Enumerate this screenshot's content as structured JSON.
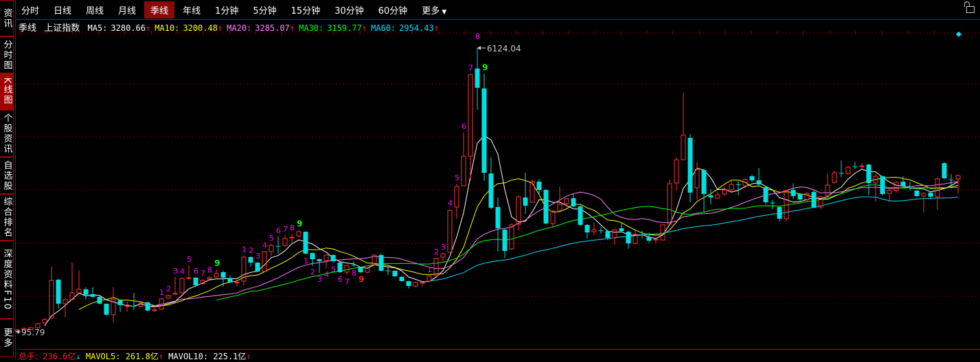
{
  "sidebar": {
    "items": [
      {
        "label": "资讯",
        "active": false
      },
      {
        "label": "分时图",
        "active": false
      },
      {
        "label": "K线图",
        "active": true
      },
      {
        "label": "个股资讯",
        "active": false
      },
      {
        "label": "自选股",
        "active": false
      },
      {
        "label": "综合排名",
        "active": false
      },
      {
        "label": "深度资料F10",
        "active": false
      },
      {
        "label": "更多",
        "active": false
      }
    ]
  },
  "toolbar": {
    "tabs": [
      "分时",
      "日线",
      "周线",
      "月线",
      "季线",
      "年线",
      "1分钟",
      "5分钟",
      "15分钟",
      "30分钟",
      "60分钟"
    ],
    "active_index": 4,
    "more_label": "更多",
    "lock_icon": "lock-icon"
  },
  "info": {
    "period": "季线",
    "name": "上证指数",
    "ma": [
      {
        "label": "MA5:",
        "value": "3280.66",
        "arrow": "↑",
        "color": "#ffffff"
      },
      {
        "label": "MA10:",
        "value": "3200.48",
        "arrow": "↑",
        "color": "#ffff00"
      },
      {
        "label": "MA20:",
        "value": "3285.07",
        "arrow": "↑",
        "color": "#ff80ff"
      },
      {
        "label": "MA30:",
        "value": "3159.77",
        "arrow": "↑",
        "color": "#00ff00"
      },
      {
        "label": "MA60:",
        "value": "2954.43",
        "arrow": "↑",
        "color": "#00e0ff"
      }
    ]
  },
  "volume": {
    "total_label": "总手:",
    "total_value": "236.6亿",
    "total_arrow": "↓",
    "mavol5_label": "MAVOL5:",
    "mavol5_value": "261.8亿",
    "mavol5_arrow": "↑",
    "mavol10_label": "MAVOL10:",
    "mavol10_value": "225.1亿",
    "mavol10_arrow": "↑"
  },
  "chart_data": {
    "type": "candlestick",
    "up_color": "#ff3232",
    "down_color": "#00e0e0",
    "y_scale": "linear",
    "grid": true,
    "max_label": "6124.04",
    "min_label": "95.79",
    "max_index": 67,
    "min_index": 0,
    "ma_periods": [
      5,
      10,
      20,
      30,
      60
    ],
    "ma_colors": [
      "#ffffff",
      "#ffff00",
      "#ff80ff",
      "#00ff00",
      "#00e0ff"
    ],
    "ohlc": [
      [
        111,
        140,
        155,
        96
      ],
      [
        140,
        169,
        184,
        130
      ],
      [
        140,
        184,
        200,
        130
      ],
      [
        184,
        271,
        290,
        170
      ],
      [
        286,
        358,
        380,
        280
      ],
      [
        387,
        1188,
        1480,
        370
      ],
      [
        1203,
        693,
        1220,
        591
      ],
      [
        693,
        780,
        800,
        402
      ],
      [
        780,
        926,
        1566,
        770
      ],
      [
        926,
        999,
        1400,
        910
      ],
      [
        999,
        882,
        1042,
        780
      ],
      [
        897,
        838,
        1042,
        820
      ],
      [
        838,
        693,
        850,
        680
      ],
      [
        693,
        460,
        700,
        440
      ],
      [
        460,
        780,
        1042,
        300
      ],
      [
        766,
        664,
        780,
        518
      ],
      [
        635,
        664,
        737,
        520
      ],
      [
        650,
        635,
        926,
        562
      ],
      [
        635,
        708,
        720,
        620
      ],
      [
        722,
        548,
        737,
        530
      ],
      [
        548,
        562,
        600,
        520
      ],
      [
        577,
        795,
        810,
        560
      ],
      [
        809,
        868,
        880,
        800
      ],
      [
        900,
        911,
        1261,
        890
      ],
      [
        926,
        1232,
        1250,
        920
      ],
      [
        1240,
        1246,
        1508,
        1200
      ],
      [
        1246,
        1086,
        1260,
        1070
      ],
      [
        1115,
        1188,
        1210,
        1100
      ],
      [
        1217,
        1246,
        1280,
        1200
      ],
      [
        1261,
        1334,
        1420,
        1250
      ],
      [
        1363,
        1246,
        1390,
        1057
      ],
      [
        1232,
        1144,
        1290,
        1130
      ],
      [
        1140,
        1150,
        1200,
        1060
      ],
      [
        1173,
        1683,
        1720,
        1080
      ],
      [
        1683,
        1566,
        1700,
        1480
      ],
      [
        1566,
        1377,
        1580,
        1360
      ],
      [
        1377,
        1800,
        1810,
        1370
      ],
      [
        1800,
        1931,
        1960,
        1700
      ],
      [
        1920,
        1910,
        2120,
        1750
      ],
      [
        1931,
        2076,
        2150,
        1900
      ],
      [
        2090,
        2105,
        2180,
        1950
      ],
      [
        2134,
        2222,
        2260,
        2100
      ],
      [
        2222,
        1756,
        2230,
        1740
      ],
      [
        1770,
        1639,
        1780,
        1500
      ],
      [
        1639,
        1596,
        1660,
        1348
      ],
      [
        1610,
        1727,
        1740,
        1450
      ],
      [
        1727,
        1596,
        1740,
        1560
      ],
      [
        1566,
        1363,
        1580,
        1350
      ],
      [
        1363,
        1508,
        1520,
        1300
      ],
      [
        1520,
        1508,
        1600,
        1480
      ],
      [
        1465,
        1363,
        1480,
        1340
      ],
      [
        1363,
        1494,
        1510,
        1340
      ],
      [
        1523,
        1727,
        1740,
        1510
      ],
      [
        1727,
        1392,
        1760,
        1380
      ],
      [
        1400,
        1392,
        1460,
        1300
      ],
      [
        1392,
        1275,
        1400,
        1260
      ],
      [
        1261,
        1173,
        1290,
        1160
      ],
      [
        1173,
        1071,
        1180,
        1020
      ],
      [
        1071,
        1144,
        1160,
        1040
      ],
      [
        1130,
        1144,
        1160,
        1050
      ],
      [
        1173,
        1275,
        1290,
        1160
      ],
      [
        1290,
        1654,
        1670,
        1280
      ],
      [
        1683,
        1756,
        1770,
        1560
      ],
      [
        1785,
        2673,
        2700,
        1770
      ],
      [
        2746,
        3183,
        3240,
        2500
      ],
      [
        3197,
        3823,
        4333,
        3190
      ],
      [
        3823,
        5556,
        5580,
        3300
      ],
      [
        5687,
        5279,
        6124.04,
        4813
      ],
      [
        5265,
        3474,
        5580,
        3300
      ],
      [
        3459,
        2731,
        3800,
        2700
      ],
      [
        2746,
        2295,
        2950,
        1800
      ],
      [
        2265,
        1814,
        2280,
        1664
      ],
      [
        1858,
        2367,
        2400,
        1840
      ],
      [
        2382,
        2964,
        2990,
        2250
      ],
      [
        2950,
        2775,
        3474,
        2600
      ],
      [
        2848,
        3285,
        3330,
        2830
      ],
      [
        3285,
        3110,
        3340,
        3000
      ],
      [
        3110,
        2397,
        3130,
        2380
      ],
      [
        2397,
        2659,
        2670,
        2300
      ],
      [
        2673,
        2804,
        3183,
        2650
      ],
      [
        2819,
        2921,
        2940,
        2750
      ],
      [
        2935,
        2760,
        3020,
        2740
      ],
      [
        2760,
        2367,
        2780,
        2350
      ],
      [
        2367,
        2207,
        2380,
        2080
      ],
      [
        2222,
        2265,
        2420,
        2150
      ],
      [
        2250,
        2236,
        2330,
        2180
      ],
      [
        2236,
        2091,
        2260,
        2050
      ],
      [
        2091,
        2265,
        2280,
        1950
      ],
      [
        2295,
        2236,
        2420,
        2220
      ],
      [
        2222,
        1974,
        2240,
        1860
      ],
      [
        1974,
        2164,
        2240,
        1950
      ],
      [
        2160,
        2149,
        2240,
        2080
      ],
      [
        2105,
        2032,
        2200,
        1990
      ],
      [
        2047,
        2062,
        2080,
        1980
      ],
      [
        2047,
        2367,
        2380,
        2030
      ],
      [
        2382,
        3241,
        3330,
        2370
      ],
      [
        3256,
        3751,
        3800,
        3100
      ],
      [
        3751,
        4275,
        5177,
        3740
      ],
      [
        4216,
        3052,
        4300,
        2848
      ],
      [
        3154,
        3547,
        3700,
        2900
      ],
      [
        3532,
        3023,
        3560,
        2630
      ],
      [
        2994,
        2950,
        3120,
        2800
      ],
      [
        2935,
        3008,
        3060,
        2920
      ],
      [
        3023,
        3110,
        3170,
        2990
      ],
      [
        3110,
        3226,
        3300,
        3080
      ],
      [
        3230,
        3220,
        3300,
        2990
      ],
      [
        3197,
        3328,
        3360,
        3150
      ],
      [
        3401,
        3314,
        3440,
        3280
      ],
      [
        3314,
        3226,
        3576,
        3200
      ],
      [
        3168,
        2848,
        3200,
        2800
      ],
      [
        2840,
        2833,
        2900,
        2700
      ],
      [
        2746,
        2498,
        2760,
        2440
      ],
      [
        2498,
        3095,
        3110,
        2440
      ],
      [
        3110,
        2979,
        3250,
        2920
      ],
      [
        3023,
        2906,
        3040,
        2880
      ],
      [
        2906,
        3037,
        3060,
        2870
      ],
      [
        3066,
        2731,
        3100,
        2720
      ],
      [
        2746,
        2964,
        2980,
        2700
      ],
      [
        2994,
        3212,
        3459,
        2980
      ],
      [
        3270,
        3474,
        3520,
        3250
      ],
      [
        3470,
        3459,
        3736,
        3380
      ],
      [
        3459,
        3590,
        3620,
        3440
      ],
      [
        3610,
        3600,
        3700,
        3550
      ],
      [
        3605,
        3619,
        3680,
        3560
      ],
      [
        3649,
        3256,
        3660,
        3000
      ],
      [
        3256,
        3401,
        3440,
        2862
      ],
      [
        3401,
        3023,
        3420,
        2990
      ],
      [
        3037,
        3095,
        3140,
        2850
      ],
      [
        3095,
        3270,
        3300,
        3050
      ],
      [
        3285,
        3183,
        3400,
        3150
      ],
      [
        3190,
        3183,
        3280,
        3100
      ],
      [
        3095,
        2979,
        3110,
        2960
      ],
      [
        2979,
        3037,
        3060,
        2630
      ],
      [
        3052,
        2964,
        3070,
        2940
      ],
      [
        2964,
        3343,
        3380,
        2688
      ],
      [
        3678,
        3357,
        3700,
        3340
      ],
      [
        3330,
        3320,
        3445,
        3150
      ],
      [
        3343,
        3416,
        3440,
        3037
      ]
    ],
    "annotations": [
      {
        "index": 21,
        "text": "1",
        "pos": "above",
        "color": "#ff00ff"
      },
      {
        "index": 22,
        "text": "2",
        "pos": "above",
        "color": "#ff00ff"
      },
      {
        "index": 23,
        "text": "3",
        "pos": "above",
        "color": "#ff00ff"
      },
      {
        "index": 24,
        "text": "4",
        "pos": "above",
        "color": "#ff00ff"
      },
      {
        "index": 25,
        "text": "5",
        "pos": "above",
        "color": "#ff00ff"
      },
      {
        "index": 26,
        "text": "6",
        "pos": "above",
        "color": "#ff00ff"
      },
      {
        "index": 27,
        "text": "7",
        "pos": "above",
        "color": "#ff00ff"
      },
      {
        "index": 28,
        "text": "8",
        "pos": "above",
        "color": "#ff00ff"
      },
      {
        "index": 29,
        "text": "9",
        "pos": "above",
        "color": "#00ff00"
      },
      {
        "index": 33,
        "text": "1",
        "pos": "above",
        "color": "#ff00ff"
      },
      {
        "index": 34,
        "text": "2",
        "pos": "above",
        "color": "#ff00ff"
      },
      {
        "index": 35,
        "text": "3",
        "pos": "above",
        "color": "#ff00ff"
      },
      {
        "index": 36,
        "text": "4",
        "pos": "above",
        "color": "#ff00ff"
      },
      {
        "index": 37,
        "text": "5",
        "pos": "above",
        "color": "#ff00ff"
      },
      {
        "index": 38,
        "text": "6",
        "pos": "above",
        "color": "#ff00ff"
      },
      {
        "index": 39,
        "text": "7",
        "pos": "above",
        "color": "#ff00ff"
      },
      {
        "index": 40,
        "text": "8",
        "pos": "above",
        "color": "#ff00ff"
      },
      {
        "index": 41,
        "text": "9",
        "pos": "above",
        "color": "#00ff00"
      },
      {
        "index": 42,
        "text": "1",
        "pos": "below",
        "color": "#ff00ff"
      },
      {
        "index": 43,
        "text": "2",
        "pos": "below",
        "color": "#ff00ff"
      },
      {
        "index": 44,
        "text": "3",
        "pos": "below",
        "color": "#ff00ff"
      },
      {
        "index": 45,
        "text": "4",
        "pos": "below",
        "color": "#ff00ff"
      },
      {
        "index": 46,
        "text": "5",
        "pos": "below",
        "color": "#ff00ff"
      },
      {
        "index": 47,
        "text": "6",
        "pos": "below",
        "color": "#ff00ff"
      },
      {
        "index": 48,
        "text": "7",
        "pos": "below",
        "color": "#ff00ff"
      },
      {
        "index": 49,
        "text": "8",
        "pos": "below",
        "color": "#ff00ff"
      },
      {
        "index": 50,
        "text": "9",
        "pos": "below",
        "color": "#ff2020"
      },
      {
        "index": 60,
        "text": "1",
        "pos": "above",
        "color": "#ff00ff"
      },
      {
        "index": 61,
        "text": "2",
        "pos": "above",
        "color": "#ff00ff"
      },
      {
        "index": 62,
        "text": "3",
        "pos": "above",
        "color": "#ff00ff"
      },
      {
        "index": 63,
        "text": "4",
        "pos": "above",
        "color": "#ff00ff"
      },
      {
        "index": 64,
        "text": "5",
        "pos": "above",
        "color": "#ff00ff"
      },
      {
        "index": 65,
        "text": "6",
        "pos": "above",
        "color": "#ff00ff"
      },
      {
        "index": 66,
        "text": "7",
        "pos": "above",
        "color": "#ff00ff"
      },
      {
        "index": 67,
        "text": "8",
        "pos": "above",
        "color": "#ff00ff"
      },
      {
        "index": 68,
        "text": "9",
        "pos": "above",
        "color": "#00ff00"
      }
    ]
  }
}
